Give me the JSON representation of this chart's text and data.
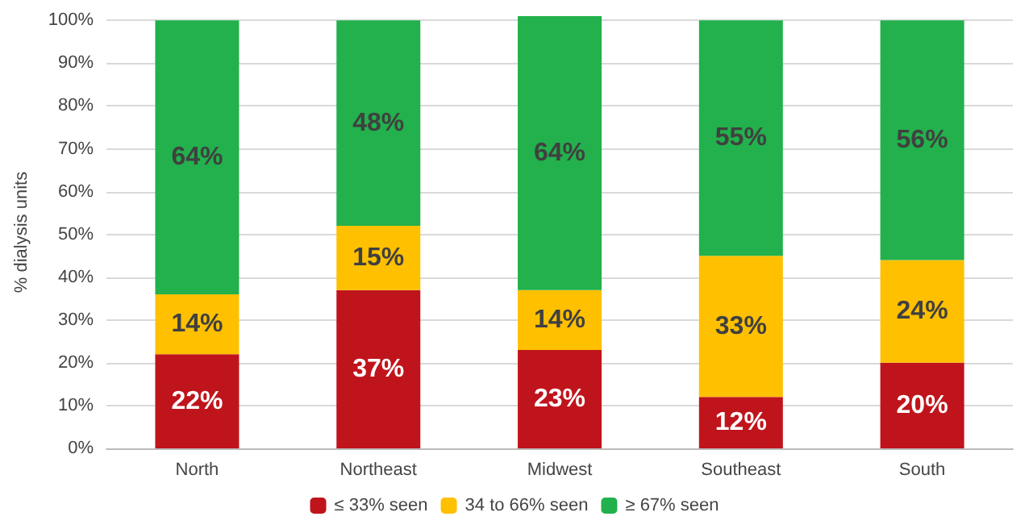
{
  "chart_data": {
    "type": "bar",
    "stacked": true,
    "ylabel": "% dialysis units",
    "categories": [
      "North",
      "Northeast",
      "Midwest",
      "Southeast",
      "South"
    ],
    "series": [
      {
        "name": "≤ 33% seen",
        "color": "#c0141c",
        "values": [
          22,
          37,
          23,
          12,
          20
        ],
        "value_labels": [
          "22%",
          "37%",
          "23%",
          "12%",
          "20%"
        ]
      },
      {
        "name": "34 to 66% seen",
        "color": "#ffc000",
        "values": [
          14,
          15,
          14,
          33,
          24
        ],
        "value_labels": [
          "14%",
          "15%",
          "14%",
          "33%",
          "24%"
        ]
      },
      {
        "name": "≥ 67% seen",
        "color": "#22b14c",
        "values": [
          64,
          48,
          64,
          55,
          56
        ],
        "value_labels": [
          "64%",
          "48%",
          "64%",
          "55%",
          "56%"
        ]
      }
    ],
    "ylim": [
      0,
      101
    ],
    "yticks": [
      {
        "value": 0,
        "label": "0%"
      },
      {
        "value": 10,
        "label": "10%"
      },
      {
        "value": 20,
        "label": "20%"
      },
      {
        "value": 30,
        "label": "30%"
      },
      {
        "value": 40,
        "label": "40%"
      },
      {
        "value": 50,
        "label": "50%"
      },
      {
        "value": 60,
        "label": "60%"
      },
      {
        "value": 70,
        "label": "70%"
      },
      {
        "value": 80,
        "label": "80%"
      },
      {
        "value": 90,
        "label": "90%"
      },
      {
        "value": 100,
        "label": "100%"
      }
    ],
    "grid": "y",
    "legend": "bottom"
  }
}
